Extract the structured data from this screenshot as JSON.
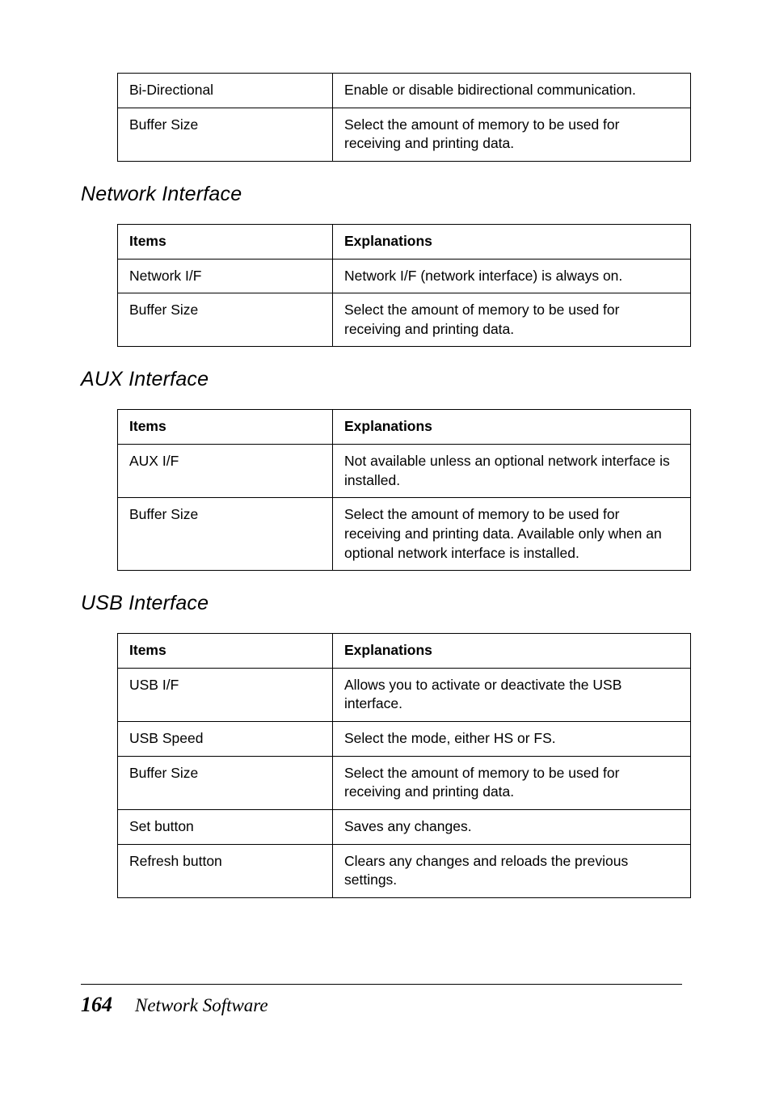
{
  "top_table": {
    "rows": [
      {
        "item": "Bi-Directional",
        "explanation": "Enable or disable bidirectional communication."
      },
      {
        "item": "Buffer Size",
        "explanation": "Select the amount of memory to be used for receiving and printing data."
      }
    ]
  },
  "sections": [
    {
      "heading": "Network Interface",
      "header_items": "Items",
      "header_expl": "Explanations",
      "rows": [
        {
          "item": "Network I/F",
          "explanation": "Network I/F (network interface) is always on."
        },
        {
          "item": "Buffer Size",
          "explanation": "Select the amount of memory to be used for receiving and printing data."
        }
      ]
    },
    {
      "heading": "AUX Interface",
      "header_items": "Items",
      "header_expl": "Explanations",
      "rows": [
        {
          "item": "AUX I/F",
          "explanation": "Not available unless an optional network interface is installed."
        },
        {
          "item": "Buffer Size",
          "explanation": "Select the amount of memory to be used for receiving and printing data. Available only when an optional network interface is installed."
        }
      ]
    },
    {
      "heading": "USB Interface",
      "header_items": "Items",
      "header_expl": "Explanations",
      "rows": [
        {
          "item": "USB I/F",
          "explanation": "Allows you to activate or deactivate the USB interface."
        },
        {
          "item": "USB Speed",
          "explanation": "Select the mode, either HS or FS."
        },
        {
          "item": "Buffer Size",
          "explanation": "Select the amount of memory to be used for receiving and printing data."
        },
        {
          "item": "Set button",
          "explanation": "Saves any changes."
        },
        {
          "item": "Refresh button",
          "explanation": "Clears any changes and reloads the previous settings."
        }
      ]
    }
  ],
  "footer": {
    "page_number": "164",
    "title": "Network Software"
  }
}
